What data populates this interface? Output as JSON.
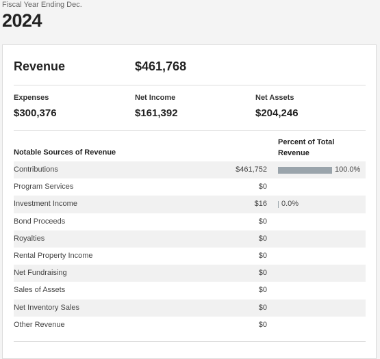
{
  "header": {
    "fiscal_label": "Fiscal Year Ending Dec.",
    "year": "2024"
  },
  "summary": {
    "revenue_label": "Revenue",
    "revenue_value": "$461,768",
    "expenses_label": "Expenses",
    "expenses_value": "$300,376",
    "net_income_label": "Net Income",
    "net_income_value": "$161,392",
    "net_assets_label": "Net Assets",
    "net_assets_value": "$204,246"
  },
  "table": {
    "sources_header": "Notable Sources of Revenue",
    "percent_header": "Percent of Total Revenue",
    "bar_color": "#9aa4ab",
    "rows": [
      {
        "name": "Contributions",
        "amount": "$461,752",
        "percent": "100.0%",
        "share": 1.0
      },
      {
        "name": "Program Services",
        "amount": "$0",
        "percent": "",
        "share": 0
      },
      {
        "name": "Investment Income",
        "amount": "$16",
        "percent": "0.0%",
        "share": 3e-05
      },
      {
        "name": "Bond Proceeds",
        "amount": "$0",
        "percent": "",
        "share": 0
      },
      {
        "name": "Royalties",
        "amount": "$0",
        "percent": "",
        "share": 0
      },
      {
        "name": "Rental Property Income",
        "amount": "$0",
        "percent": "",
        "share": 0
      },
      {
        "name": "Net Fundraising",
        "amount": "$0",
        "percent": "",
        "share": 0
      },
      {
        "name": "Sales of Assets",
        "amount": "$0",
        "percent": "",
        "share": 0
      },
      {
        "name": "Net Inventory Sales",
        "amount": "$0",
        "percent": "",
        "share": 0
      },
      {
        "name": "Other Revenue",
        "amount": "$0",
        "percent": "",
        "share": 0
      }
    ]
  }
}
